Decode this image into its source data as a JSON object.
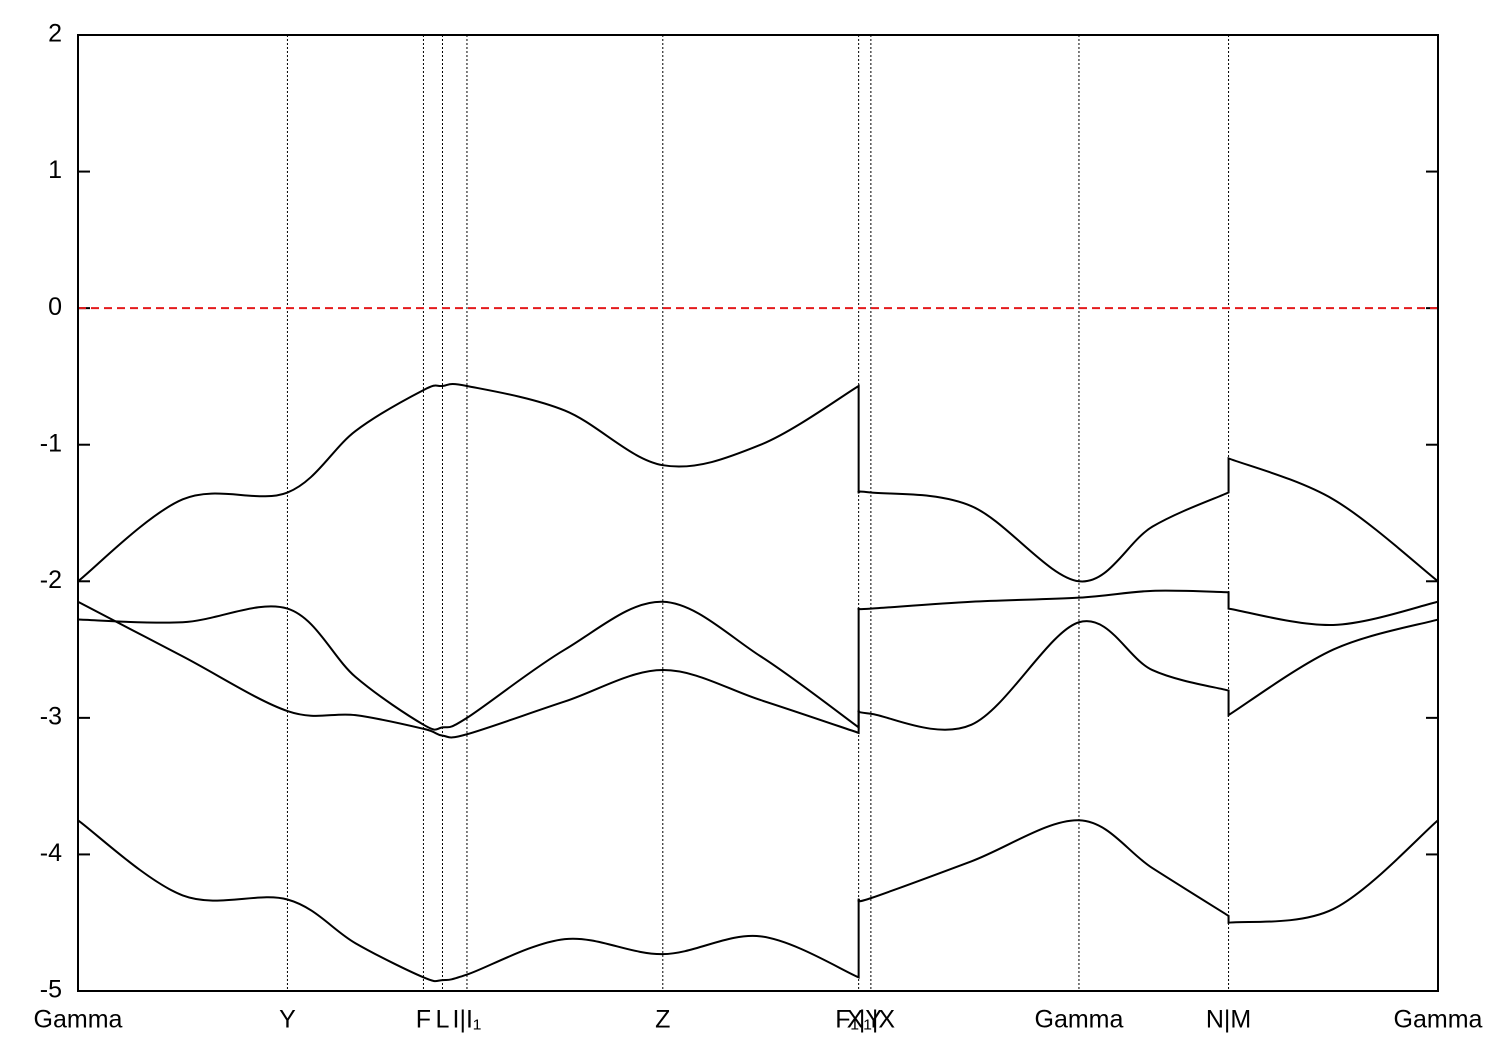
{
  "chart_data": {
    "type": "line",
    "x": [
      0,
      0.077,
      0.154,
      0.204,
      0.254,
      0.268,
      0.286,
      0.358,
      0.43,
      0.502,
      0.574,
      0.574,
      0.583,
      0.657,
      0.736,
      0.79,
      0.846,
      0.846,
      0.923,
      1.0
    ],
    "series": [
      {
        "color": "#000000",
        "values": [
          -2.0,
          -1.4,
          -1.35,
          -0.9,
          -0.6,
          -0.57,
          -0.57,
          -0.75,
          -1.15,
          -1.0,
          -0.57,
          -1.35,
          -1.35,
          -1.45,
          -2.0,
          -1.6,
          -1.35,
          -1.1,
          -1.4,
          -2.0
        ]
      },
      {
        "color": "#000000",
        "values": [
          -2.15,
          -2.55,
          -2.95,
          -2.98,
          -3.08,
          -3.13,
          -3.12,
          -2.88,
          -2.65,
          -2.87,
          -3.11,
          -2.95,
          -2.97,
          -3.05,
          -2.3,
          -2.65,
          -2.8,
          -2.98,
          -2.5,
          -2.28
        ]
      },
      {
        "color": "#000000",
        "values": [
          -2.28,
          -2.3,
          -2.2,
          -2.7,
          -3.05,
          -3.07,
          -3.0,
          -2.5,
          -2.15,
          -2.55,
          -3.07,
          -2.2,
          -2.2,
          -2.15,
          -2.12,
          -2.07,
          -2.08,
          -2.2,
          -2.32,
          -2.15
        ]
      },
      {
        "color": "#000000",
        "values": [
          -3.75,
          -4.3,
          -4.33,
          -4.65,
          -4.9,
          -4.92,
          -4.88,
          -4.62,
          -4.73,
          -4.6,
          -4.9,
          -4.33,
          -4.32,
          -4.05,
          -3.75,
          -4.1,
          -4.45,
          -4.5,
          -4.4,
          -3.75
        ]
      }
    ],
    "xlim": [
      0,
      1
    ],
    "xticks": [
      {
        "value": 0,
        "label": "Gamma"
      },
      {
        "value": 0.154,
        "label": "Y"
      },
      {
        "value": 0.254,
        "label": "F"
      },
      {
        "value": 0.268,
        "label": "L"
      },
      {
        "value": 0.286,
        "label": "I|I₁"
      },
      {
        "value": 0.43,
        "label": "Z"
      },
      {
        "value": 0.574,
        "label": "F₁|Y"
      },
      {
        "value": 0.583,
        "label": "X₁|X"
      },
      {
        "value": 0.736,
        "label": "Gamma"
      },
      {
        "value": 0.846,
        "label": "N|M"
      },
      {
        "value": 1.0,
        "label": "Gamma"
      }
    ],
    "ylim": [
      -5,
      2
    ],
    "yticks": [
      -5,
      -4,
      -3,
      -2,
      -1,
      0,
      1,
      2
    ],
    "reference_line": {
      "value": 0,
      "color": "#e41a1c"
    }
  }
}
